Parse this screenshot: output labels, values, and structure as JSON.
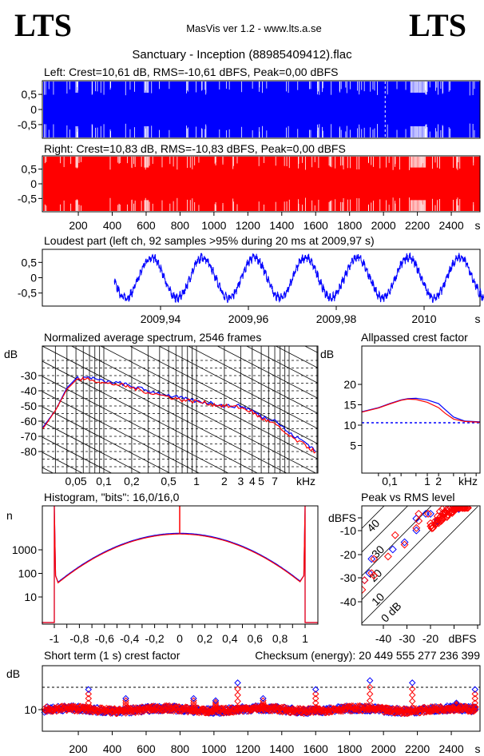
{
  "header": {
    "logo_left": "LTS",
    "logo_right": "LTS",
    "app": "MasVis ver 1.2 - www.lts.a.se",
    "file_title": "Sanctuary - Inception (88985409412).flac"
  },
  "colors": {
    "left": "#0000ff",
    "right": "#ff0000"
  },
  "chart_data": [
    {
      "type": "area",
      "id": "left_waveform",
      "title": "Left: Crest=10,61 dB, RMS=-10,61 dBFS, Peak=0,00 dBFS",
      "yticks": [
        "0,5",
        "0",
        "-0,5"
      ],
      "ylim": [
        -1,
        1
      ],
      "xlim": [
        0,
        2546
      ],
      "color": "#0000ff"
    },
    {
      "type": "area",
      "id": "right_waveform",
      "title": "Right: Crest=10,83 dB, RMS=-10,83 dBFS, Peak=0,00 dBFS",
      "yticks": [
        "0,5",
        "0",
        "-0,5"
      ],
      "ylim": [
        -1,
        1
      ],
      "xlim": [
        0,
        2546
      ],
      "xticks": [
        "200",
        "400",
        "600",
        "800",
        "1000",
        "1200",
        "1400",
        "1600",
        "1800",
        "2000",
        "2200",
        "2400"
      ],
      "xunit": "s",
      "color": "#ff0000"
    },
    {
      "type": "line",
      "id": "loudest_part",
      "title": "Loudest part (left  ch, 92 samples >95% during 20 ms at 2009,97 s)",
      "yticks": [
        "0,5",
        "0",
        "-0,5"
      ],
      "xticks": [
        "2009,94",
        "2009,96",
        "2009,98",
        "2010"
      ],
      "xunit": "s",
      "xlim": [
        2009.9295,
        2010.0145
      ],
      "ylim": [
        -1,
        1
      ],
      "period_s": 0.0117
    },
    {
      "type": "line",
      "id": "spectrum",
      "title": "Normalized average spectrum, 2546 frames",
      "ylabel": "dB",
      "yticks": [
        "-30",
        "-40",
        "-50",
        "-60",
        "-70",
        "-80"
      ],
      "xticks": [
        "0,05",
        "0,1",
        "0,2",
        "0,5",
        "1",
        "2",
        "3",
        "4",
        "5",
        "7"
      ],
      "xunit": "kHz",
      "xscale": "log",
      "grid": true,
      "series": [
        {
          "color": "#0000ff",
          "x": [
            0.022,
            0.03,
            0.04,
            0.05,
            0.07,
            0.1,
            0.15,
            0.2,
            0.3,
            0.5,
            0.7,
            1,
            1.5,
            2,
            3,
            4,
            5,
            7,
            10,
            15,
            20
          ],
          "y": [
            -64,
            -53,
            -38,
            -32,
            -31,
            -34,
            -35,
            -37,
            -40,
            -43,
            -45,
            -47,
            -48,
            -50,
            -50,
            -53,
            -57,
            -59,
            -68,
            -74,
            -80
          ]
        },
        {
          "color": "#ff0000",
          "x": [
            0.022,
            0.03,
            0.04,
            0.05,
            0.07,
            0.1,
            0.15,
            0.2,
            0.3,
            0.5,
            0.7,
            1,
            1.5,
            2,
            3,
            4,
            5,
            7,
            10,
            15,
            20
          ],
          "y": [
            -65,
            -53,
            -39,
            -33,
            -32,
            -35,
            -36,
            -38,
            -41,
            -44,
            -46,
            -47,
            -49,
            -50,
            -51,
            -54,
            -58,
            -62,
            -70,
            -76,
            -81
          ]
        }
      ]
    },
    {
      "type": "line",
      "id": "allpassed_crest",
      "title": "Allpassed crest factor",
      "ylabel": "dB",
      "yticks": [
        "20",
        "15",
        "10",
        "5"
      ],
      "xticks": [
        "0,1",
        "1",
        "2"
      ],
      "xunit": "kHz",
      "xscale": "log",
      "reference_db": 10.6,
      "series": [
        {
          "color": "#0000ff",
          "x": [
            0.018,
            0.05,
            0.1,
            0.2,
            0.3,
            0.5,
            1,
            2,
            3,
            5,
            10,
            25
          ],
          "y": [
            13.3,
            14.3,
            15.3,
            16.2,
            16.5,
            16.6,
            16.2,
            15.3,
            13.8,
            12,
            11,
            10.8
          ]
        },
        {
          "color": "#ff0000",
          "x": [
            0.018,
            0.05,
            0.1,
            0.2,
            0.3,
            0.5,
            1,
            2,
            3,
            5,
            10,
            25
          ],
          "y": [
            13.2,
            14.2,
            15.2,
            16.1,
            16.4,
            16.3,
            15.6,
            14.3,
            12.9,
            11.5,
            10.9,
            10.7
          ]
        }
      ]
    },
    {
      "type": "line",
      "id": "histogram",
      "title": "Histogram, \"bits\": 16,0/16,0",
      "ylabel": "n",
      "yscale": "log",
      "yticks": [
        "1000",
        "100",
        "10"
      ],
      "xticks": [
        "-1",
        "-0,8",
        "-0,6",
        "-0,4",
        "-0,2",
        "0",
        "0,2",
        "0,4",
        "0,6",
        "0,8",
        "1"
      ],
      "xlim": [
        -1.1,
        1.1
      ]
    },
    {
      "type": "scatter",
      "id": "peak_vs_rms",
      "title": "Peak vs RMS level",
      "yticks": [
        "dBFS",
        "-10",
        "-20",
        "-30",
        "-40"
      ],
      "xticks": [
        "-40",
        "-30",
        "-20",
        "dBFS"
      ],
      "diagonal_labels": [
        "40",
        "30",
        "20",
        "10",
        "0 dB"
      ],
      "xlim": [
        -49,
        0
      ],
      "ylim": [
        -50,
        0
      ],
      "series": [
        {
          "color": "#0000ff",
          "points": [
            [
              -48,
              -31
            ],
            [
              -45,
              -22
            ],
            [
              -46,
              -28
            ],
            [
              -36,
              -18
            ],
            [
              -31,
              -15
            ],
            [
              -26,
              -10
            ],
            [
              -26,
              -5
            ],
            [
              -22,
              -3
            ],
            [
              -20,
              -3
            ],
            [
              -17,
              -6
            ],
            [
              -15,
              -3
            ],
            [
              -12,
              -1
            ],
            [
              -10,
              -1
            ],
            [
              -8,
              -1
            ]
          ]
        },
        {
          "color": "#ff0000",
          "points": [
            [
              -49,
              -35
            ],
            [
              -48,
              -31
            ],
            [
              -44,
              -22
            ],
            [
              -45,
              -28
            ],
            [
              -44,
              -29
            ],
            [
              -38,
              -21
            ],
            [
              -35,
              -12
            ],
            [
              -31,
              -16
            ],
            [
              -26,
              -9
            ],
            [
              -25,
              -3
            ],
            [
              -25,
              -6
            ],
            [
              -21,
              -3
            ],
            [
              -20,
              -7
            ],
            [
              -19,
              -9
            ],
            [
              -18,
              -6
            ],
            [
              -17,
              -4
            ],
            [
              -16,
              -2
            ],
            [
              -15,
              -1
            ],
            [
              -14,
              -3
            ],
            [
              -13,
              -1
            ],
            [
              -12,
              -1
            ],
            [
              -11,
              -1
            ],
            [
              -10,
              -1
            ],
            [
              -9,
              -1
            ]
          ]
        }
      ]
    },
    {
      "type": "scatter",
      "id": "short_term_crest",
      "title": "Short term (1 s) crest factor",
      "checksum_label": "Checksum (energy):  20 449 555 277 236 399",
      "ylabel": "dB",
      "yticks": [
        "10"
      ],
      "reference_db": 20,
      "xticks": [
        "200",
        "400",
        "600",
        "800",
        "1000",
        "1200",
        "1400",
        "1600",
        "1800",
        "2000",
        "2200",
        "2400"
      ],
      "xunit": "s",
      "xlim": [
        0,
        2546
      ],
      "baseline_db": 10,
      "peaks": [
        [
          260,
          19
        ],
        [
          480,
          15
        ],
        [
          880,
          15
        ],
        [
          1010,
          14
        ],
        [
          1140,
          22
        ],
        [
          1290,
          15
        ],
        [
          1600,
          19
        ],
        [
          1920,
          23
        ],
        [
          2170,
          22
        ],
        [
          2430,
          13
        ],
        [
          2540,
          19
        ]
      ]
    }
  ]
}
